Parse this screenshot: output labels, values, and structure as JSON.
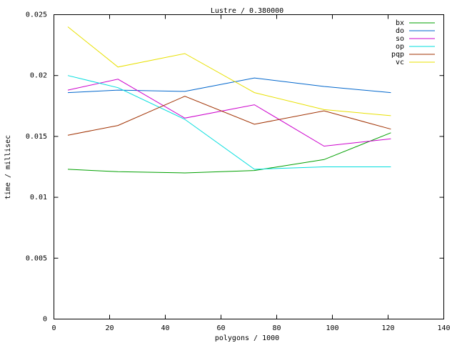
{
  "chart_data": {
    "type": "line",
    "title": "Lustre / 0.380000",
    "xlabel": "polygons / 1000",
    "ylabel": "time / millisec",
    "xlim": [
      0,
      140
    ],
    "ylim": [
      0,
      0.025
    ],
    "x_ticks": [
      0,
      20,
      40,
      60,
      80,
      100,
      120,
      140
    ],
    "x_tick_labels": [
      "0",
      "20",
      "40",
      "60",
      "80",
      "100",
      "120",
      "140"
    ],
    "y_ticks": [
      0,
      0.005,
      0.01,
      0.015,
      0.02,
      0.025
    ],
    "y_tick_labels": [
      "0",
      "0.005",
      "0.01",
      "0.015",
      "0.02",
      "0.025"
    ],
    "legend_position": "top-right",
    "grid": false,
    "x": [
      5,
      23,
      47,
      72,
      97,
      121
    ],
    "series": [
      {
        "name": "bx",
        "color": "#00a000",
        "values": [
          0.0123,
          0.0121,
          0.012,
          0.0122,
          0.0131,
          0.0153
        ]
      },
      {
        "name": "do",
        "color": "#0066cc",
        "values": [
          0.0186,
          0.0188,
          0.0187,
          0.0198,
          0.0191,
          0.0186
        ]
      },
      {
        "name": "so",
        "color": "#cc00cc",
        "values": [
          0.0188,
          0.0197,
          0.0165,
          0.0176,
          0.0142,
          0.0148
        ]
      },
      {
        "name": "op",
        "color": "#00dddd",
        "values": [
          0.02,
          0.019,
          0.0164,
          0.0123,
          0.0125,
          0.0125
        ]
      },
      {
        "name": "pqp",
        "color": "#a03000",
        "values": [
          0.0151,
          0.0159,
          0.0183,
          0.016,
          0.0171,
          0.0156
        ]
      },
      {
        "name": "vc",
        "color": "#e8e000",
        "values": [
          0.024,
          0.0207,
          0.0218,
          0.0186,
          0.0172,
          0.0167
        ]
      }
    ]
  }
}
